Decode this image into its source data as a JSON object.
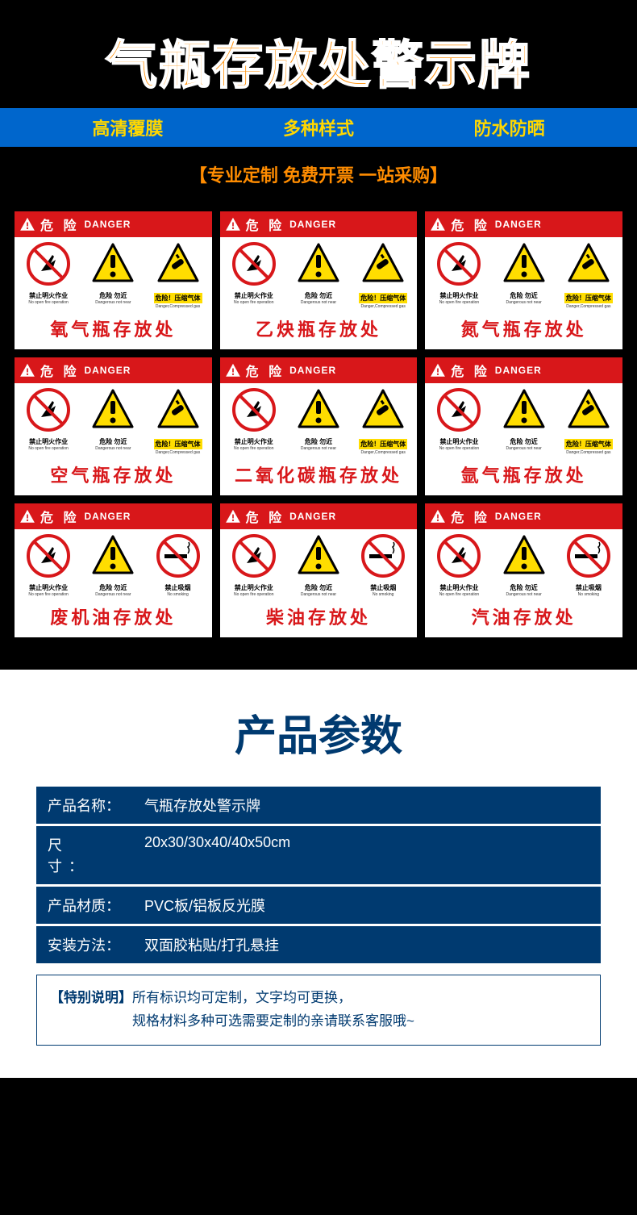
{
  "colors": {
    "accent": "#ff8c00",
    "blue": "#0066cc",
    "gold": "#ffD700",
    "red": "#d8171a",
    "navy": "#003a70",
    "yellow": "#ffdd00",
    "bg": "#000000",
    "white": "#ffffff"
  },
  "header": {
    "title": "气瓶存放处警示牌",
    "features": [
      "高清覆膜",
      "多种样式",
      "防水防晒"
    ],
    "tagline": "【专业定制  免费开票  一站采购】"
  },
  "danger_hdr": {
    "cn": "危 险",
    "en": "DANGER"
  },
  "icon_labels": {
    "no_fire": {
      "cn": "禁止明火作业",
      "en": "No open fire operation"
    },
    "keep_away": {
      "cn": "危险 勿近",
      "en": "Dangerous not near"
    },
    "compressed": {
      "cn": "危险！压缩气体",
      "en": "Danger,Compressed gas"
    },
    "no_smoke": {
      "cn": "禁止吸烟",
      "en": "No smoking"
    }
  },
  "cards": [
    {
      "label": "氧气瓶存放处",
      "third": "compressed"
    },
    {
      "label": "乙炔瓶存放处",
      "third": "compressed"
    },
    {
      "label": "氮气瓶存放处",
      "third": "compressed"
    },
    {
      "label": "空气瓶存放处",
      "third": "compressed"
    },
    {
      "label": "二氧化碳瓶存放处",
      "third": "compressed"
    },
    {
      "label": "氩气瓶存放处",
      "third": "compressed"
    },
    {
      "label": "废机油存放处",
      "third": "no_smoke"
    },
    {
      "label": "柴油存放处",
      "third": "no_smoke"
    },
    {
      "label": "汽油存放处",
      "third": "no_smoke"
    }
  ],
  "section2": {
    "title": "产品参数",
    "rows": [
      {
        "k": "产品名称：",
        "v": "气瓶存放处警示牌",
        "sp": false
      },
      {
        "k": "尺　　寸：",
        "v": "20x30/30x40/40x50cm",
        "sp": true
      },
      {
        "k": "产品材质：",
        "v": "PVC板/铝板反光膜",
        "sp": false
      },
      {
        "k": "安装方法：",
        "v": "双面胶粘贴/打孔悬挂",
        "sp": false
      }
    ],
    "note_k": "【特别说明】",
    "note_v": "所有标识均可定制，文字均可更换，\n规格材料多种可选需要定制的亲请联系客服哦~"
  }
}
